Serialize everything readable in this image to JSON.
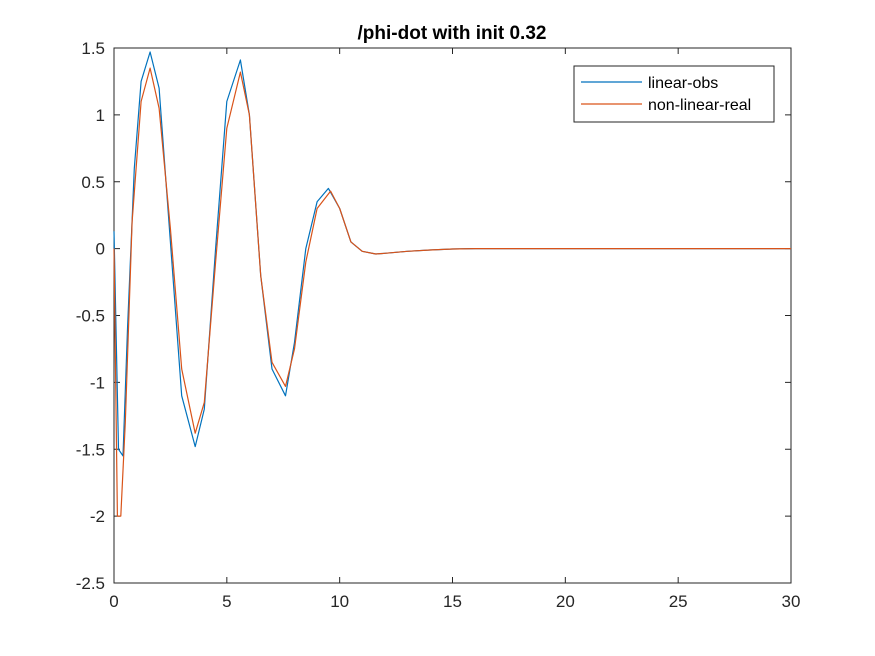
{
  "chart_data": {
    "type": "line",
    "title": "/phi-dot with init 0.32",
    "xlabel": "",
    "ylabel": "",
    "xlim": [
      0,
      30
    ],
    "ylim": [
      -2.5,
      1.5
    ],
    "xticks": [
      0,
      5,
      10,
      15,
      20,
      25,
      30
    ],
    "yticks": [
      -2.5,
      -2,
      -1.5,
      -1,
      -0.5,
      0,
      0.5,
      1,
      1.5
    ],
    "xtick_labels": [
      "0",
      "5",
      "10",
      "15",
      "20",
      "25",
      "30"
    ],
    "ytick_labels": [
      "-2.5",
      "-2",
      "-1.5",
      "-1",
      "-0.5",
      "0",
      "0.5",
      "1",
      "1.5"
    ],
    "grid": false,
    "legend_position": "top-right",
    "series": [
      {
        "name": "linear-obs",
        "color": "#0072BD",
        "x": [
          0,
          0.2,
          0.4,
          0.6,
          0.9,
          1.2,
          1.6,
          2.0,
          2.5,
          3.0,
          3.6,
          4.0,
          4.5,
          5.0,
          5.6,
          6.0,
          6.5,
          7.0,
          7.6,
          8.0,
          8.5,
          9.0,
          9.5,
          10.0,
          10.5,
          11.0,
          11.6,
          12.0,
          13.0,
          14.0,
          15.0,
          16.0,
          18.0,
          20.0,
          25.0,
          30.0
        ],
        "y": [
          0.13,
          -1.5,
          -1.55,
          -0.6,
          0.6,
          1.25,
          1.47,
          1.2,
          0.05,
          -1.1,
          -1.48,
          -1.2,
          0.0,
          1.1,
          1.41,
          1.0,
          -0.2,
          -0.9,
          -1.1,
          -0.7,
          0.0,
          0.35,
          0.45,
          0.3,
          0.05,
          -0.02,
          -0.04,
          -0.035,
          -0.02,
          -0.01,
          -0.003,
          0.0,
          0.0,
          0.0,
          0.0,
          0.0
        ]
      },
      {
        "name": "non-linear-real",
        "color": "#D95319",
        "x": [
          0,
          0.15,
          0.3,
          0.5,
          0.8,
          1.2,
          1.6,
          2.0,
          2.5,
          3.0,
          3.6,
          4.0,
          4.5,
          5.0,
          5.6,
          6.0,
          6.5,
          7.0,
          7.6,
          8.0,
          8.5,
          9.0,
          9.6,
          10.0,
          10.5,
          11.0,
          11.6,
          12.0,
          13.0,
          14.0,
          15.0,
          16.0,
          18.0,
          20.0,
          25.0,
          30.0
        ],
        "y": [
          0.0,
          -2.0,
          -2.0,
          -1.3,
          0.2,
          1.1,
          1.35,
          1.05,
          0.15,
          -0.9,
          -1.38,
          -1.15,
          -0.1,
          0.9,
          1.32,
          1.0,
          -0.2,
          -0.85,
          -1.03,
          -0.75,
          -0.1,
          0.3,
          0.43,
          0.3,
          0.05,
          -0.02,
          -0.04,
          -0.035,
          -0.02,
          -0.01,
          -0.003,
          0.0,
          0.0,
          0.0,
          0.0,
          0.0
        ]
      }
    ]
  }
}
